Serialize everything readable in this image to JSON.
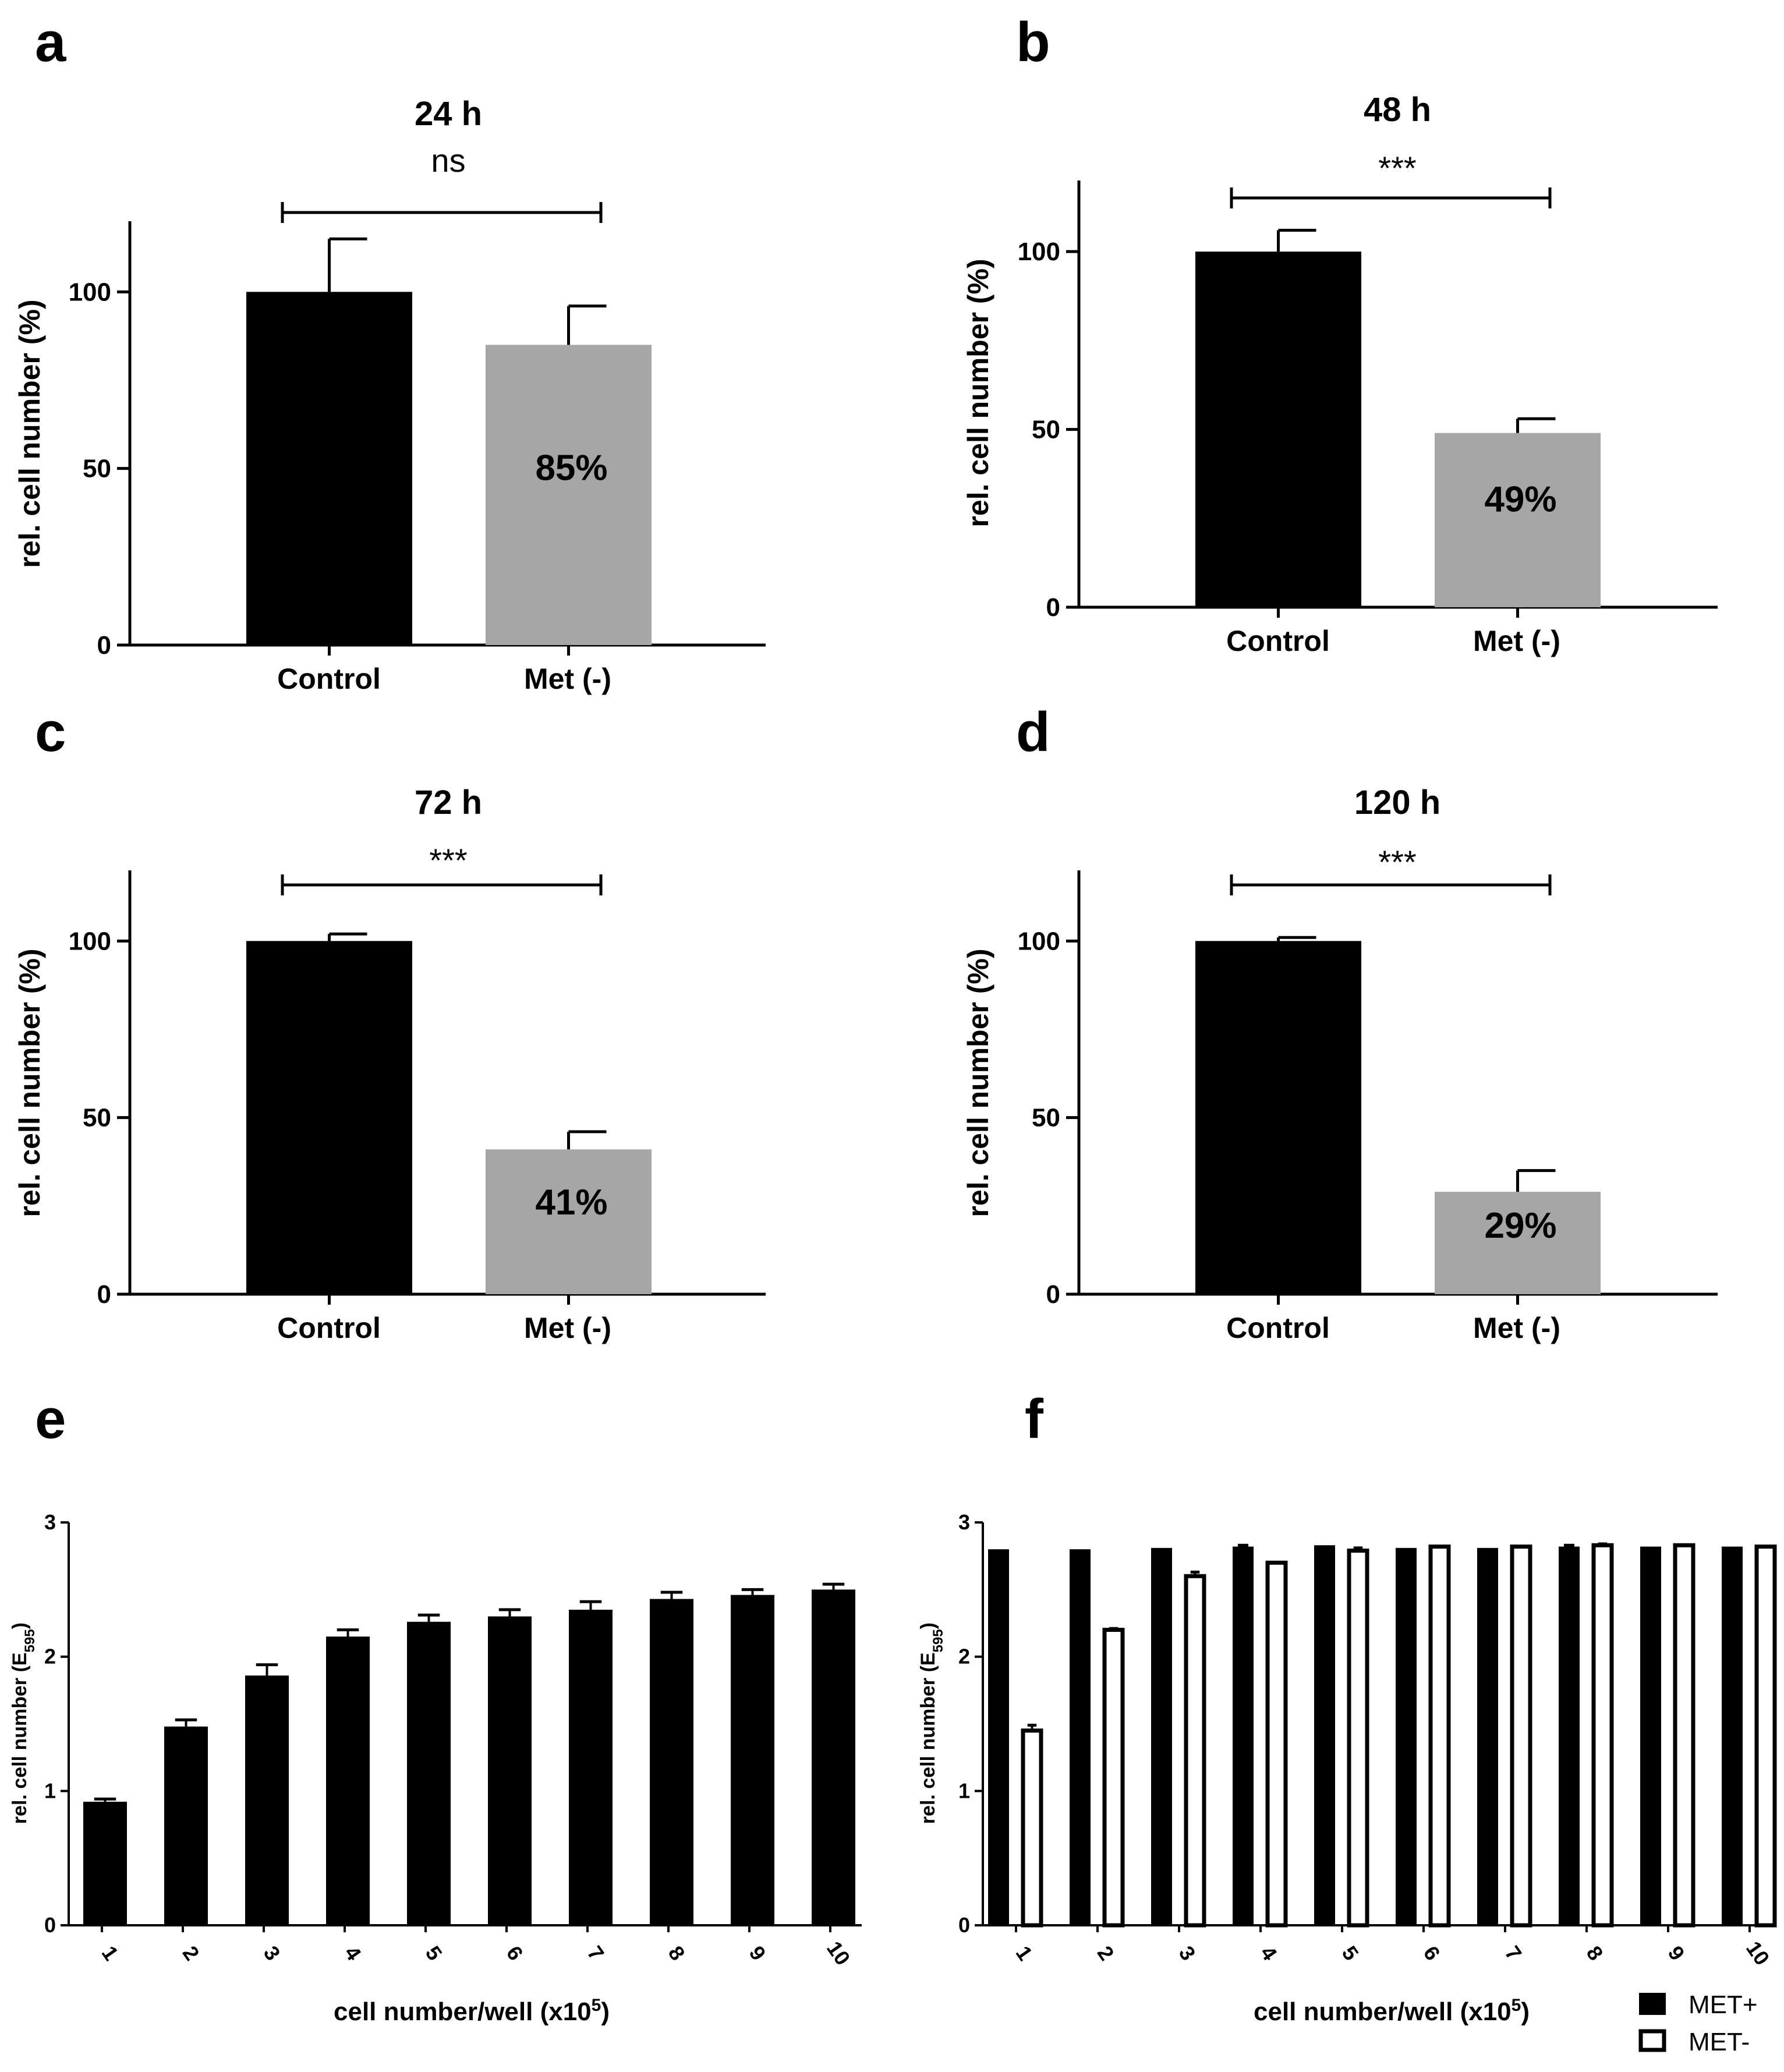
{
  "chart_data": [
    {
      "id": "a",
      "panel_letter": "a",
      "type": "bar",
      "title": "24 h",
      "significance": "ns",
      "ylabel": "rel. cell number (%)",
      "xlabel": "",
      "ylim": [
        0,
        120
      ],
      "yticks": [
        "0",
        "50",
        "100"
      ],
      "categories": [
        "Control",
        "Met (-)"
      ],
      "values": [
        100,
        85
      ],
      "errors": [
        15,
        11
      ],
      "colors": [
        "#000000",
        "#a6a6a6"
      ],
      "bar_labels": [
        "",
        "85%"
      ]
    },
    {
      "id": "b",
      "panel_letter": "b",
      "type": "bar",
      "title": "48 h",
      "significance": "***",
      "ylabel": "rel. cell number (%)",
      "xlabel": "",
      "ylim": [
        0,
        120
      ],
      "yticks": [
        "0",
        "50",
        "100"
      ],
      "categories": [
        "Control",
        "Met (-)"
      ],
      "values": [
        100,
        49
      ],
      "errors": [
        6,
        4
      ],
      "colors": [
        "#000000",
        "#a6a6a6"
      ],
      "bar_labels": [
        "",
        "49%"
      ]
    },
    {
      "id": "c",
      "panel_letter": "c",
      "type": "bar",
      "title": "72 h",
      "significance": "***",
      "ylabel": "rel. cell number (%)",
      "xlabel": "",
      "ylim": [
        0,
        120
      ],
      "yticks": [
        "0",
        "50",
        "100"
      ],
      "categories": [
        "Control",
        "Met (-)"
      ],
      "values": [
        100,
        41
      ],
      "errors": [
        2,
        5
      ],
      "colors": [
        "#000000",
        "#a6a6a6"
      ],
      "bar_labels": [
        "",
        "41%"
      ]
    },
    {
      "id": "d",
      "panel_letter": "d",
      "type": "bar",
      "title": "120 h",
      "significance": "***",
      "ylabel": "rel. cell number (%)",
      "xlabel": "",
      "ylim": [
        0,
        120
      ],
      "yticks": [
        "0",
        "50",
        "100"
      ],
      "categories": [
        "Control",
        "Met (-)"
      ],
      "values": [
        100,
        29
      ],
      "errors": [
        1,
        6
      ],
      "colors": [
        "#000000",
        "#a6a6a6"
      ],
      "bar_labels": [
        "",
        "29%"
      ]
    },
    {
      "id": "e",
      "panel_letter": "e",
      "type": "bar",
      "title": "",
      "ylabel_main": "rel. cell number (E",
      "ylabel_sub": "595",
      "ylabel_end": ")",
      "xlabel_main": "cell number/well (x10",
      "xlabel_sup": "5",
      "xlabel_end": ")",
      "ylim": [
        0,
        3
      ],
      "yticks": [
        "0",
        "1",
        "2",
        "3"
      ],
      "categories": [
        "1",
        "2",
        "3",
        "4",
        "5",
        "6",
        "7",
        "8",
        "9",
        "10"
      ],
      "series": [
        {
          "name": "",
          "values": [
            0.92,
            1.48,
            1.86,
            2.15,
            2.26,
            2.3,
            2.35,
            2.43,
            2.46,
            2.5
          ],
          "errors": [
            0.02,
            0.05,
            0.08,
            0.05,
            0.05,
            0.05,
            0.06,
            0.05,
            0.04,
            0.04
          ]
        }
      ]
    },
    {
      "id": "f",
      "panel_letter": "f",
      "type": "bar",
      "title": "",
      "ylabel_main": "rel. cell number (E",
      "ylabel_sub": "595",
      "ylabel_end": ")",
      "xlabel_main": "cell number/well (x10",
      "xlabel_sup": "5",
      "xlabel_end": ")",
      "ylim": [
        0,
        3
      ],
      "yticks": [
        "0",
        "1",
        "2",
        "3"
      ],
      "categories": [
        "1",
        "2",
        "3",
        "4",
        "5",
        "6",
        "7",
        "8",
        "9",
        "10"
      ],
      "legend": [
        "MET+",
        "MET-"
      ],
      "series": [
        {
          "name": "MET+",
          "values": [
            2.8,
            2.8,
            2.81,
            2.82,
            2.83,
            2.81,
            2.81,
            2.82,
            2.82,
            2.82
          ],
          "errors": [
            0,
            0,
            0,
            0.01,
            0,
            0,
            0,
            0.01,
            0,
            0
          ]
        },
        {
          "name": "MET-",
          "values": [
            1.45,
            2.2,
            2.6,
            2.7,
            2.79,
            2.82,
            2.82,
            2.83,
            2.83,
            2.82
          ],
          "errors": [
            0.04,
            0.01,
            0.03,
            0,
            0.02,
            0,
            0,
            0.01,
            0,
            0
          ]
        }
      ]
    }
  ]
}
